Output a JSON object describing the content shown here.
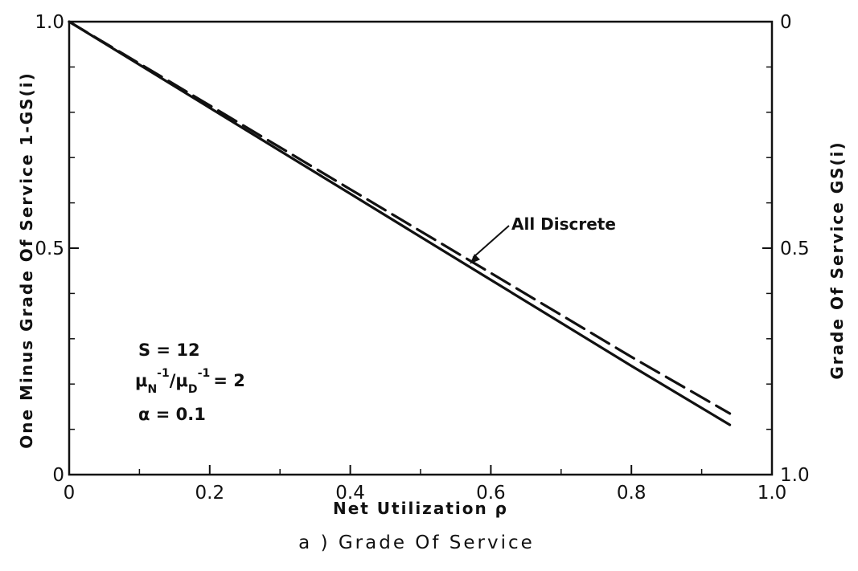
{
  "chart_data": {
    "type": "line",
    "caption": "a ) Grade Of Service",
    "xlabel": "Net Utilization ρ",
    "ylabel_left": "One Minus Grade Of Service 1-GS(i)",
    "ylabel_right": "Grade Of Service GS(i)",
    "xlim": [
      0,
      1.0
    ],
    "ylim": [
      0,
      1.0
    ],
    "right_ylim": [
      1.0,
      0
    ],
    "x_tick_labels": [
      "0",
      "0.2",
      "0.4",
      "0.6",
      "0.8",
      "1.0"
    ],
    "x_tick_values": [
      0,
      0.2,
      0.4,
      0.6,
      0.8,
      1.0
    ],
    "x_minor_ticks": [
      0.1,
      0.3,
      0.5,
      0.7,
      0.9
    ],
    "y_left_tick_labels": [
      "0",
      "0.5",
      "1.0"
    ],
    "y_left_tick_values": [
      0,
      0.5,
      1.0
    ],
    "y_right_tick_labels": [
      "1.0",
      "0.5",
      "0"
    ],
    "y_right_tick_values": [
      0,
      0.5,
      1.0
    ],
    "y_minor_ticks": [
      0.1,
      0.2,
      0.3,
      0.4,
      0.6,
      0.7,
      0.8,
      0.9
    ],
    "grid": false,
    "series": [
      {
        "style": "solid",
        "x": [
          0,
          0.2,
          0.4,
          0.6,
          0.8,
          0.94
        ],
        "y": [
          1.0,
          0.81,
          0.62,
          0.43,
          0.24,
          0.11
        ]
      },
      {
        "name": "All Discrete",
        "style": "dashed",
        "x": [
          0,
          0.2,
          0.4,
          0.6,
          0.8,
          0.94
        ],
        "y": [
          1.0,
          0.815,
          0.63,
          0.445,
          0.26,
          0.135
        ]
      }
    ],
    "annotations": [
      {
        "text": "All Discrete",
        "points_to_x": 0.57,
        "points_to_y": 0.465
      }
    ],
    "parameters": {
      "line1": "S = 12",
      "line2_mu_n": "μ",
      "line2_sub_n": "N",
      "line2_sup": "-1",
      "line2_slash": "/",
      "line2_mu_d": "μ",
      "line2_sub_d": "D",
      "line2_rest": "= 2",
      "line3": "α = 0.1"
    }
  }
}
